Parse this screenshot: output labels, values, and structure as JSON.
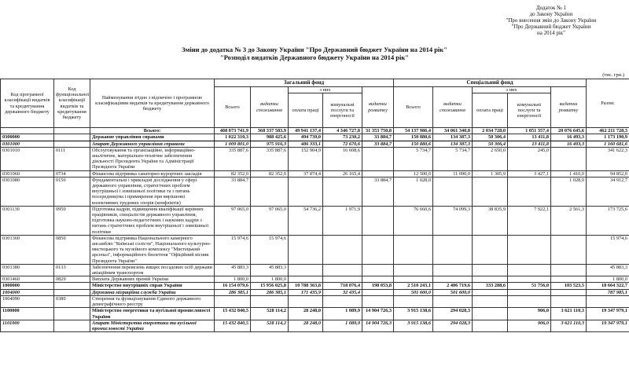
{
  "annex_note": [
    "Додаток № 1",
    "до Закону України",
    "\"Про внесення змін до Закону України",
    "\"Про Державний бюджет України",
    "на 2014 рік\""
  ],
  "title": [
    "Зміни до додатка № 3 до Закону України \"Про Державний бюджет України на 2014 рік\"",
    "\"Розподіл видатків Державного бюджету України на 2014 рік\""
  ],
  "unit": "(тис. грн.)",
  "table": {
    "header": {
      "program_code": "Код програмної класифікації видатків та кредитування державного бюджету",
      "functional_code": "Код функціональної класифікації видатків та кредитування бюджету",
      "name": "Найменування згідно з відомчою і програмною класифікаціями видатків та кредитування державного бюджету",
      "general": {
        "title": "Загальний фонд",
        "all": "Всього",
        "consumption": "видатки споживання",
        "of_which": "з них",
        "wages": "оплата праці",
        "utilities": "комунальні послуги та енергоносії",
        "development": "видатки розвитку"
      },
      "special": {
        "title": "Спеціальний фонд",
        "all": "Всього",
        "consumption": "видатки споживання",
        "of_which": "з них",
        "wages": "оплата праці",
        "utilities": "комунальні послуги та енергоносії",
        "development": "видатки розвитку"
      },
      "total": "Разом:"
    },
    "rows": [
      [
        null,
        null,
        "Всього:",
        "408 073 741,9",
        "368 337 583,9",
        "49 941 137,4",
        "4 346 727,8",
        "31 353 750,8",
        "54 137 986,4",
        "34 061 340,8",
        "2 034 728,0",
        "1 051 357,4",
        "20 076 645,6",
        "462 211 728,3"
      ],
      [
        "0300000",
        null,
        "Державне управління справами",
        "1 022 310,3",
        "988 425,6",
        "494 739,0",
        "73 230,2",
        "33 884,7",
        "150 880,6",
        "134 387,3",
        "50 306,4",
        "13 411,8",
        "16 493,3",
        "1 173 190,9"
      ],
      [
        "0301000",
        null,
        "Апарат Державного управління справами",
        "1 009 801,0",
        "975 916,3",
        "486 333,1",
        "72 670,6",
        "33 884,7",
        "150 880,6",
        "134 387,3",
        "50 306,4",
        "13 411,8",
        "16 493,3",
        "1 160 681,6"
      ],
      [
        "0301010",
        "0111",
        "Обслуговування та організаційне, інформаційно-аналітичне, матеріально-технічне забезпечення діяльності Президента України та Адміністрації Президента України",
        "335 887,6",
        "335 887,6",
        "152 904,9",
        "16 608,6",
        null,
        "5 734,7",
        "5 734,7",
        "2 650,0",
        "245,0",
        null,
        "341 622,3"
      ],
      [
        "0301060",
        "0734",
        "Фінансова підтримка санаторно-курортних закладів",
        "82 352,0",
        "82 352,0",
        "37 874,4",
        "26 165,4",
        null,
        "12 500,0",
        "11 090,0",
        "1 305,9",
        "3 427,1",
        "1 410,0",
        "94 852,0"
      ],
      [
        "0301080",
        "0150",
        "Фундаментальні і прикладні дослідження у сфері державного управління, стратегічних проблем внутрішньої і зовнішньої політики та з питань посередництва і примирення при вирішенні колективних трудових спорів (конфліктів)",
        "33 884,7",
        null,
        null,
        null,
        "33 884,7",
        "1 028,0",
        null,
        null,
        null,
        "1 028,0",
        "34 912,7"
      ],
      [
        "0301130",
        "0950",
        "Підготовка кадрів, підвищення кваліфікації керівних працівників, спеціалістів державного управління, підготовка науково-педагогічних і наукових кадрів з питань стратегічних проблем внутрішньої і зовнішньої політики",
        "97 065,0",
        "97 065,0",
        "54 736,2",
        "1 971,9",
        null,
        "76 660,6",
        "74 099,3",
        "38 835,9",
        "7 922,1",
        "2 561,3",
        "173 725,6"
      ],
      [
        "0301360",
        "0850",
        "Фінансова підтримка Національного камерного ансамблю \"Київські солісти\", Національного культурно-мистецького та музейного комплексу \"Мистецький арсенал\", інформаційного бюлетеня \"Офіційний вісник Президента України\"",
        "15 974,6",
        "15 974,6",
        null,
        null,
        null,
        null,
        null,
        null,
        null,
        null,
        "15 974,6"
      ],
      [
        "0301380",
        "0133",
        "Забезпечення перевезень вищих посадових осіб держави авіаційним транспортом",
        "45 883,3",
        "45 883,3",
        null,
        null,
        null,
        null,
        null,
        null,
        null,
        null,
        "45 883,3"
      ],
      [
        "0301460",
        "0829",
        "Виплата Державних премій України",
        "1 800,0",
        "1 800,0",
        null,
        null,
        null,
        null,
        null,
        null,
        null,
        null,
        "1 800,0"
      ],
      [
        "1000000",
        null,
        "Міністерство внутрішніх справ України",
        "16 154 079,6",
        "15 956 025,8",
        "10 788 363,8",
        "718 076,4",
        "198 053,8",
        "2 510 243,1",
        "2 406 719,6",
        "333 288,6",
        "51 756,0",
        "103 523,5",
        "18 664 322,7"
      ],
      [
        "1004000",
        null,
        "Державна міграційна служба України",
        "286 385,1",
        "286 385,1",
        "171 435,9",
        "32 435,4",
        null,
        "501 600,0",
        "501 600,0",
        null,
        null,
        null,
        "787 985,1"
      ],
      [
        "1004090",
        "0380",
        "Створення та функціонування Єдиного державного демографічного реєстру",
        null,
        null,
        null,
        null,
        null,
        null,
        null,
        null,
        null,
        null,
        null
      ],
      [
        "1100000",
        null,
        "Міністерство енергетики та вугільної промисловості України",
        "15 432 840,5",
        "528 114,2",
        "28 248,0",
        "1 089,9",
        "14 904 726,3",
        "3 915 138,6",
        "294 028,3",
        null,
        "906,0",
        "3 621 110,3",
        "19 347 979,1"
      ],
      [
        "1101000",
        null,
        "Апарат Міністерства енергетики та вугільної промисловості України",
        "15 432 840,5",
        "528 114,2",
        "28 248,0",
        "1 089,9",
        "14 904 726,3",
        "3 915 138,6",
        "294 028,3",
        null,
        "906,0",
        "3 621 110,3",
        "19 347 979,1"
      ]
    ]
  }
}
